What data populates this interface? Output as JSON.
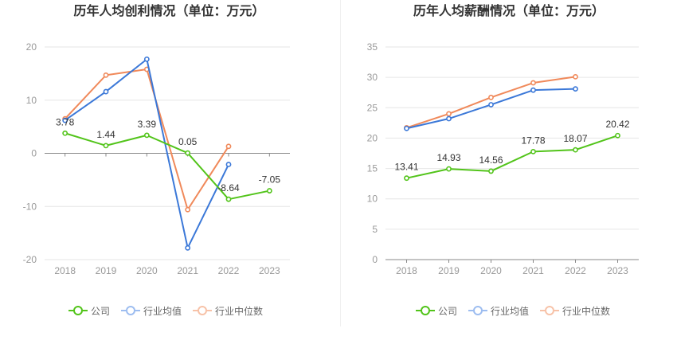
{
  "colors": {
    "company": "#52c41a",
    "industry_avg": "#3b78d8",
    "industry_median": "#f0895a",
    "grid": "#e6e6e6",
    "axis": "#999999",
    "tick": "#999999",
    "label": "#333333"
  },
  "legend": [
    "公司",
    "行业均值",
    "行业中位数"
  ],
  "chart_data": [
    {
      "type": "line",
      "title": "历年人均创利情况（单位：万元）",
      "categories": [
        "2018",
        "2019",
        "2020",
        "2021",
        "2022",
        "2023"
      ],
      "ylim": [
        -20,
        20
      ],
      "yticks": [
        -20,
        -10,
        0,
        10,
        20
      ],
      "series": [
        {
          "name": "公司",
          "key": "company",
          "values": [
            3.78,
            1.44,
            3.39,
            0.05,
            -8.64,
            -7.05
          ],
          "labels": [
            "3.78",
            "1.44",
            "3.39",
            "0.05",
            "-8.64",
            "-7.05"
          ]
        },
        {
          "name": "行业均值",
          "key": "industry_avg",
          "values": [
            6.2,
            11.6,
            17.7,
            -17.8,
            -2.1,
            null
          ]
        },
        {
          "name": "行业中位数",
          "key": "industry_median",
          "values": [
            6.5,
            14.7,
            15.8,
            -10.6,
            1.3,
            null
          ]
        }
      ]
    },
    {
      "type": "line",
      "title": "历年人均薪酬情况（单位：万元）",
      "categories": [
        "2018",
        "2019",
        "2020",
        "2021",
        "2022",
        "2023"
      ],
      "ylim": [
        0,
        35
      ],
      "yticks": [
        0,
        5,
        10,
        15,
        20,
        25,
        30,
        35
      ],
      "series": [
        {
          "name": "公司",
          "key": "company",
          "values": [
            13.41,
            14.93,
            14.56,
            17.78,
            18.07,
            20.42
          ],
          "labels": [
            "13.41",
            "14.93",
            "14.56",
            "17.78",
            "18.07",
            "20.42"
          ]
        },
        {
          "name": "行业均值",
          "key": "industry_avg",
          "values": [
            21.6,
            23.2,
            25.5,
            27.9,
            28.1,
            null
          ]
        },
        {
          "name": "行业中位数",
          "key": "industry_median",
          "values": [
            21.7,
            24.0,
            26.7,
            29.1,
            30.1,
            null
          ]
        }
      ]
    }
  ]
}
